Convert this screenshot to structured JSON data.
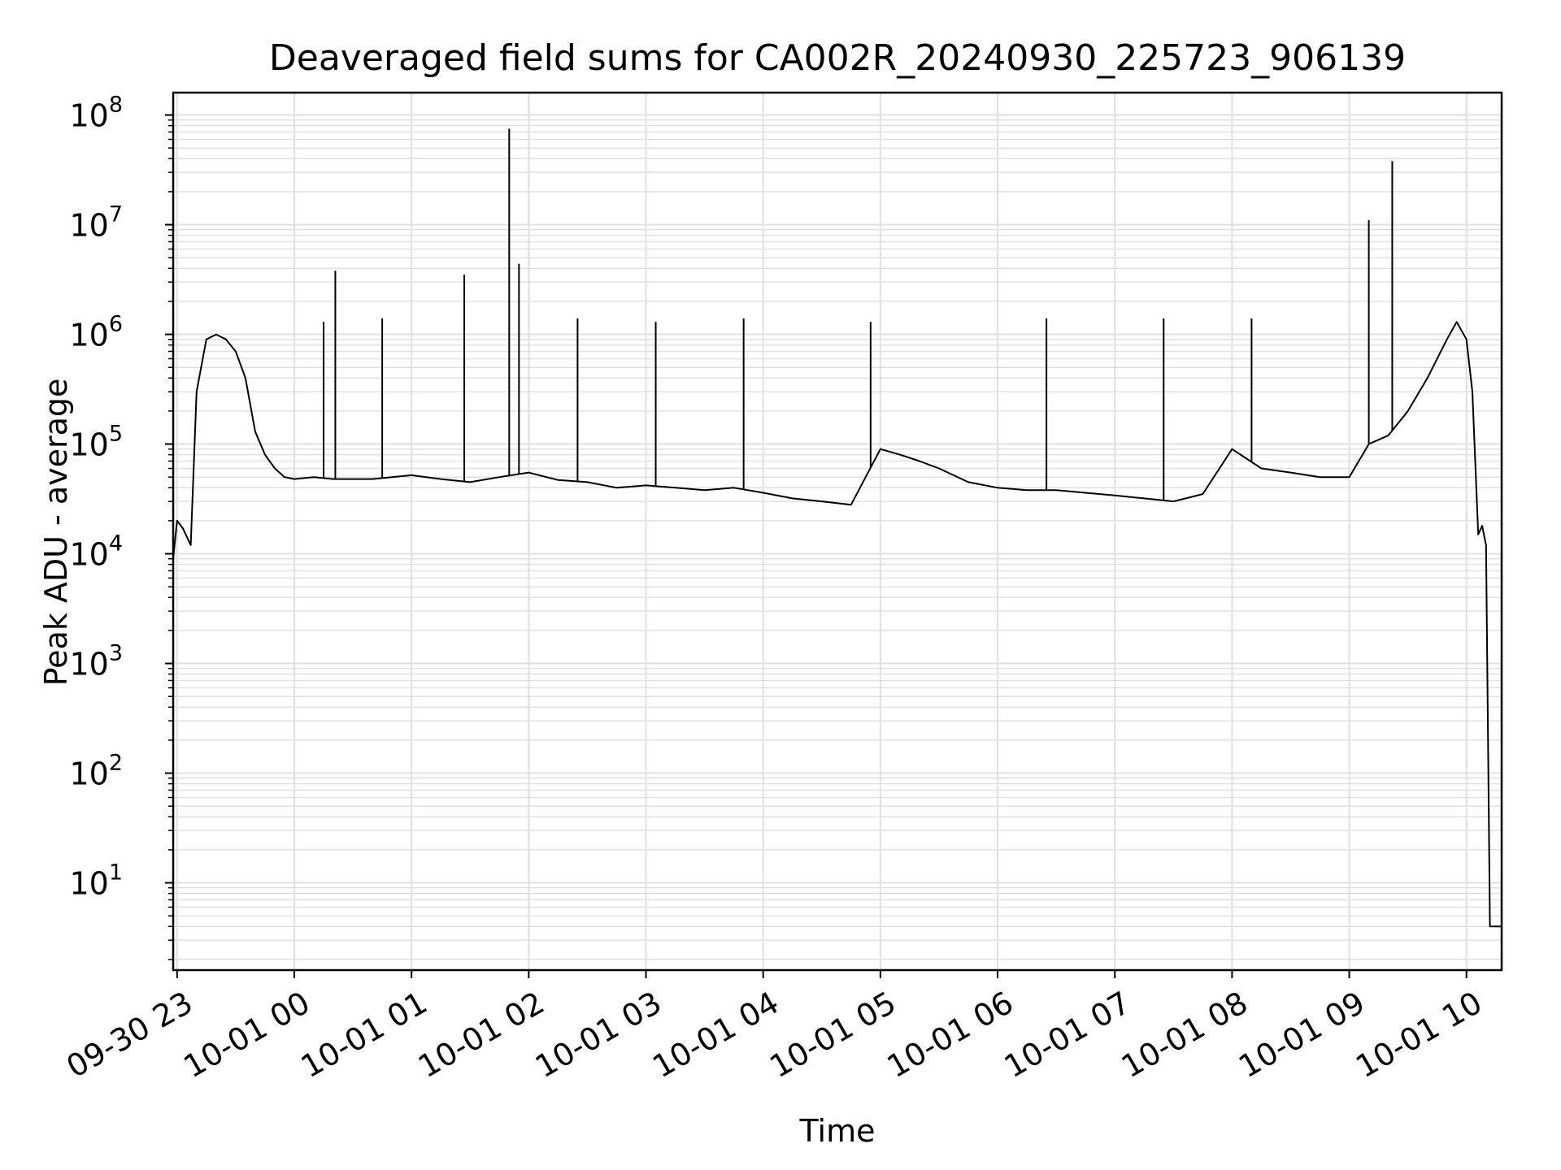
{
  "chart_data": {
    "type": "line",
    "title": "Deaveraged field sums for CA002R_20240930_225723_906139",
    "xlabel": "Time",
    "ylabel": "Peak ADU - average",
    "yscale": "log",
    "ylim": [
      1.6,
      160000000
    ],
    "xlim": [
      "2024-09-30 22:58",
      "2024-10-01 10:18"
    ],
    "grid": true,
    "line_color": "#000000",
    "grid_color": "#e0e0e0",
    "x_ticks": [
      "09-30 23",
      "10-01 00",
      "10-01 01",
      "10-01 02",
      "10-01 03",
      "10-01 04",
      "10-01 05",
      "10-01 06",
      "10-01 07",
      "10-01 08",
      "10-01 09",
      "10-01 10"
    ],
    "y_ticks": [
      {
        "base": "10",
        "exp": "1"
      },
      {
        "base": "10",
        "exp": "2"
      },
      {
        "base": "10",
        "exp": "3"
      },
      {
        "base": "10",
        "exp": "4"
      },
      {
        "base": "10",
        "exp": "5"
      },
      {
        "base": "10",
        "exp": "6"
      },
      {
        "base": "10",
        "exp": "7"
      },
      {
        "base": "10",
        "exp": "8"
      }
    ],
    "series": [
      {
        "x": [
          "2024-09-30 22:58",
          "2024-09-30 23:00",
          "2024-09-30 23:03",
          "2024-09-30 23:07",
          "2024-09-30 23:10",
          "2024-09-30 23:15",
          "2024-09-30 23:20",
          "2024-09-30 23:25",
          "2024-09-30 23:30",
          "2024-09-30 23:35",
          "2024-09-30 23:40",
          "2024-09-30 23:45",
          "2024-09-30 23:50",
          "2024-09-30 23:55",
          "2024-10-01 00:00",
          "2024-10-01 00:10",
          "2024-10-01 00:20",
          "2024-10-01 00:30",
          "2024-10-01 00:40",
          "2024-10-01 00:50",
          "2024-10-01 01:00",
          "2024-10-01 01:15",
          "2024-10-01 01:30",
          "2024-10-01 01:45",
          "2024-10-01 02:00",
          "2024-10-01 02:15",
          "2024-10-01 02:30",
          "2024-10-01 02:45",
          "2024-10-01 03:00",
          "2024-10-01 03:15",
          "2024-10-01 03:30",
          "2024-10-01 03:45",
          "2024-10-01 04:00",
          "2024-10-01 04:15",
          "2024-10-01 04:30",
          "2024-10-01 04:45",
          "2024-10-01 05:00",
          "2024-10-01 05:10",
          "2024-10-01 05:20",
          "2024-10-01 05:30",
          "2024-10-01 05:45",
          "2024-10-01 06:00",
          "2024-10-01 06:15",
          "2024-10-01 06:30",
          "2024-10-01 06:45",
          "2024-10-01 07:00",
          "2024-10-01 07:15",
          "2024-10-01 07:30",
          "2024-10-01 07:45",
          "2024-10-01 08:00",
          "2024-10-01 08:15",
          "2024-10-01 08:30",
          "2024-10-01 08:45",
          "2024-10-01 09:00",
          "2024-10-01 09:10",
          "2024-10-01 09:20",
          "2024-10-01 09:30",
          "2024-10-01 09:40",
          "2024-10-01 09:50",
          "2024-10-01 09:55",
          "2024-10-01 10:00",
          "2024-10-01 10:03",
          "2024-10-01 10:06",
          "2024-10-01 10:08",
          "2024-10-01 10:10",
          "2024-10-01 10:12",
          "2024-10-01 10:14",
          "2024-10-01 10:18"
        ],
        "y": [
          9000,
          20000,
          17000,
          12000,
          300000,
          900000,
          1000000,
          900000,
          700000,
          400000,
          130000,
          80000,
          60000,
          50000,
          48000,
          50000,
          48000,
          48000,
          48000,
          50000,
          52000,
          48000,
          45000,
          50000,
          55000,
          47000,
          45000,
          40000,
          42000,
          40000,
          38000,
          40000,
          36000,
          32000,
          30000,
          28000,
          90000,
          80000,
          70000,
          60000,
          45000,
          40000,
          38000,
          38000,
          36000,
          34000,
          32000,
          30000,
          35000,
          90000,
          60000,
          55000,
          50000,
          50000,
          100000,
          120000,
          200000,
          400000,
          900000,
          1300000,
          900000,
          300000,
          15000,
          18000,
          12000,
          4,
          4,
          4
        ]
      }
    ],
    "spikes": [
      {
        "x": "2024-10-01 00:21",
        "y": 3800000
      },
      {
        "x": "2024-10-01 01:27",
        "y": 3500000
      },
      {
        "x": "2024-10-01 01:50",
        "y": 75000000
      },
      {
        "x": "2024-10-01 01:55",
        "y": 4400000
      },
      {
        "x": "2024-10-01 00:15",
        "y": 1300000
      },
      {
        "x": "2024-10-01 00:45",
        "y": 1400000
      },
      {
        "x": "2024-10-01 02:25",
        "y": 1400000
      },
      {
        "x": "2024-10-01 03:05",
        "y": 1300000
      },
      {
        "x": "2024-10-01 03:50",
        "y": 1400000
      },
      {
        "x": "2024-10-01 04:55",
        "y": 1300000
      },
      {
        "x": "2024-10-01 06:25",
        "y": 1400000
      },
      {
        "x": "2024-10-01 07:25",
        "y": 1400000
      },
      {
        "x": "2024-10-01 08:10",
        "y": 1400000
      },
      {
        "x": "2024-10-01 09:10",
        "y": 11000000
      },
      {
        "x": "2024-10-01 09:22",
        "y": 38000000
      }
    ]
  }
}
